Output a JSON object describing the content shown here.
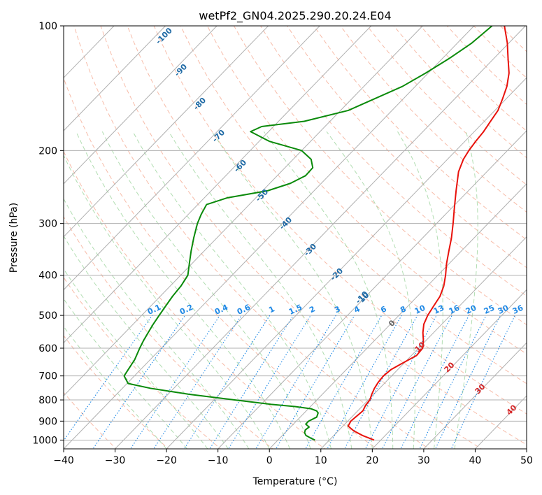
{
  "chart_data": {
    "type": "line",
    "subtype": "skew-t log-p",
    "title": "wetPf2_GN04.2025.290.20.24.E04",
    "xlabel": "Temperature (°C)",
    "ylabel": "Pressure (hPa)",
    "xlim": [
      -40,
      50
    ],
    "ylim": [
      1050,
      100
    ],
    "x_ticks": [
      "−40",
      "−30",
      "−20",
      "−10",
      "0",
      "10",
      "20",
      "30",
      "40",
      "50"
    ],
    "y_ticks": [
      {
        "p": 100,
        "label": "100"
      },
      {
        "p": 200,
        "label": "200"
      },
      {
        "p": 300,
        "label": "300"
      },
      {
        "p": 400,
        "label": "400"
      },
      {
        "p": 500,
        "label": "500"
      },
      {
        "p": 600,
        "label": "600"
      },
      {
        "p": 700,
        "label": "700"
      },
      {
        "p": 800,
        "label": "800"
      },
      {
        "p": 900,
        "label": "900"
      },
      {
        "p": 1000,
        "label": "1000"
      }
    ],
    "colors": {
      "temperature": "#e8120c",
      "dewpoint": "#0a8a0a",
      "isotherm": "#b0b0b0",
      "dry_adiabat": "#f4a58c",
      "moist_adiabat": "#9dd49d",
      "mixing_ratio": "#1e88e5",
      "isotherm_label": "#1f6aa5",
      "theta_label": "#d62728"
    },
    "series": [
      {
        "name": "Temperature",
        "points": [
          [
            1000,
            18.7
          ],
          [
            975,
            15.6
          ],
          [
            950,
            13.0
          ],
          [
            925,
            11.0
          ],
          [
            900,
            10.6
          ],
          [
            875,
            10.8
          ],
          [
            850,
            11.0
          ],
          [
            825,
            10.5
          ],
          [
            800,
            10.3
          ],
          [
            775,
            9.6
          ],
          [
            750,
            9.0
          ],
          [
            725,
            8.6
          ],
          [
            700,
            8.4
          ],
          [
            675,
            8.7
          ],
          [
            650,
            9.8
          ],
          [
            625,
            11.0
          ],
          [
            600,
            10.8
          ],
          [
            575,
            9.5
          ],
          [
            550,
            7.9
          ],
          [
            525,
            6.5
          ],
          [
            500,
            5.6
          ],
          [
            475,
            5.0
          ],
          [
            450,
            4.4
          ],
          [
            425,
            3.2
          ],
          [
            400,
            1.5
          ],
          [
            375,
            -0.5
          ],
          [
            350,
            -2.4
          ],
          [
            325,
            -4.4
          ],
          [
            300,
            -6.8
          ],
          [
            275,
            -9.5
          ],
          [
            250,
            -12.4
          ],
          [
            225,
            -15.5
          ],
          [
            210,
            -16.9
          ],
          [
            200,
            -17.5
          ],
          [
            190,
            -17.9
          ],
          [
            180,
            -18.2
          ],
          [
            170,
            -18.8
          ],
          [
            160,
            -19.4
          ],
          [
            150,
            -20.7
          ],
          [
            140,
            -22.2
          ],
          [
            130,
            -24.3
          ],
          [
            120,
            -27.2
          ],
          [
            110,
            -30.3
          ],
          [
            100,
            -34.1
          ]
        ]
      },
      {
        "name": "Dewpoint",
        "points": [
          [
            1000,
            7.2
          ],
          [
            990,
            6.1
          ],
          [
            975,
            4.6
          ],
          [
            960,
            3.8
          ],
          [
            945,
            3.4
          ],
          [
            930,
            3.6
          ],
          [
            915,
            2.4
          ],
          [
            900,
            2.4
          ],
          [
            880,
            3.2
          ],
          [
            860,
            2.7
          ],
          [
            850,
            2.0
          ],
          [
            840,
            0.5
          ],
          [
            830,
            -3.0
          ],
          [
            820,
            -8.0
          ],
          [
            800,
            -16.0
          ],
          [
            775,
            -26.0
          ],
          [
            750,
            -34.5
          ],
          [
            730,
            -39.8
          ],
          [
            700,
            -42.0
          ],
          [
            670,
            -42.5
          ],
          [
            640,
            -43.0
          ],
          [
            600,
            -44.2
          ],
          [
            575,
            -44.9
          ],
          [
            550,
            -45.5
          ],
          [
            525,
            -46.1
          ],
          [
            500,
            -46.6
          ],
          [
            475,
            -47.1
          ],
          [
            450,
            -47.6
          ],
          [
            425,
            -47.9
          ],
          [
            400,
            -48.6
          ],
          [
            375,
            -50.5
          ],
          [
            350,
            -52.5
          ],
          [
            325,
            -54.5
          ],
          [
            300,
            -56.5
          ],
          [
            285,
            -57.5
          ],
          [
            270,
            -58.3
          ],
          [
            260,
            -55.5
          ],
          [
            250,
            -49.0
          ],
          [
            240,
            -46.0
          ],
          [
            230,
            -44.5
          ],
          [
            220,
            -44.6
          ],
          [
            210,
            -46.5
          ],
          [
            200,
            -50.0
          ],
          [
            190,
            -58.0
          ],
          [
            180,
            -63.5
          ],
          [
            175,
            -62.3
          ],
          [
            170,
            -55.0
          ],
          [
            160,
            -48.5
          ],
          [
            140,
            -42.5
          ],
          [
            130,
            -40.5
          ],
          [
            120,
            -38.7
          ],
          [
            110,
            -37.2
          ],
          [
            100,
            -36.5
          ]
        ]
      }
    ],
    "isotherm_labels": [
      "-100",
      "-90",
      "-80",
      "-70",
      "-60",
      "-50",
      "-40",
      "-30",
      "-20",
      "-10",
      "0",
      "10"
    ],
    "mixing_ratio_labels": [
      "0.1",
      "0.2",
      "0.4",
      "0.6",
      "1",
      "1.5",
      "2",
      "3",
      "4",
      "6",
      "8",
      "10",
      "13",
      "16",
      "20",
      "25",
      "30",
      "36"
    ],
    "theta_labels": [
      "0",
      "10",
      "20",
      "30",
      "40"
    ]
  }
}
